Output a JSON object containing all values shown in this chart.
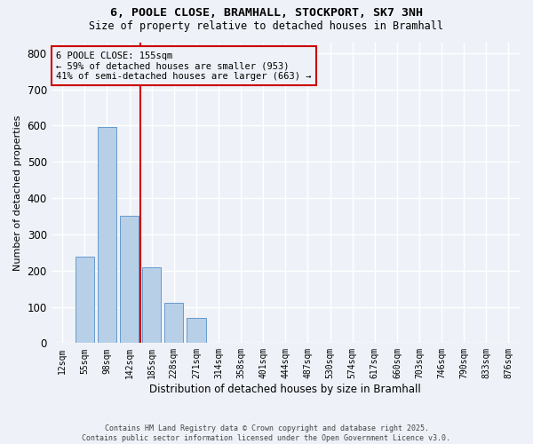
{
  "title_line1": "6, POOLE CLOSE, BRAMHALL, STOCKPORT, SK7 3NH",
  "title_line2": "Size of property relative to detached houses in Bramhall",
  "xlabel": "Distribution of detached houses by size in Bramhall",
  "ylabel": "Number of detached properties",
  "categories": [
    "12sqm",
    "55sqm",
    "98sqm",
    "142sqm",
    "185sqm",
    "228sqm",
    "271sqm",
    "314sqm",
    "358sqm",
    "401sqm",
    "444sqm",
    "487sqm",
    "530sqm",
    "574sqm",
    "617sqm",
    "660sqm",
    "703sqm",
    "746sqm",
    "790sqm",
    "833sqm",
    "876sqm"
  ],
  "values": [
    0,
    238,
    595,
    350,
    210,
    110,
    70,
    0,
    0,
    0,
    0,
    0,
    0,
    0,
    0,
    0,
    0,
    0,
    0,
    0,
    0
  ],
  "bar_color": "#b8cfe8",
  "bar_edge_color": "#6699cc",
  "vline_color": "#cc0000",
  "vline_x_index": 3.5,
  "annotation_text": "6 POOLE CLOSE: 155sqm\n← 59% of detached houses are smaller (953)\n41% of semi-detached houses are larger (663) →",
  "annotation_box_color": "#cc0000",
  "ylim": [
    0,
    830
  ],
  "yticks": [
    0,
    100,
    200,
    300,
    400,
    500,
    600,
    700,
    800
  ],
  "footer_line1": "Contains HM Land Registry data © Crown copyright and database right 2025.",
  "footer_line2": "Contains public sector information licensed under the Open Government Licence v3.0.",
  "bg_color": "#eef2f8",
  "grid_color": "#ffffff"
}
